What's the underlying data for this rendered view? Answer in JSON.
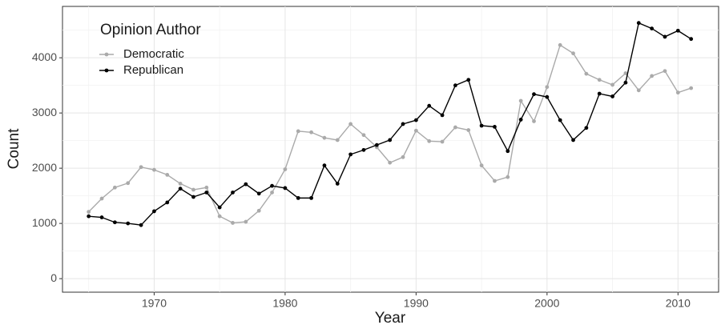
{
  "chart_data": {
    "type": "line",
    "x_label": "Year",
    "y_label": "Count",
    "legend_title": "Opinion Author",
    "legend": "top-left",
    "grid": true,
    "x": [
      1965,
      1966,
      1967,
      1968,
      1969,
      1970,
      1971,
      1972,
      1973,
      1974,
      1975,
      1976,
      1977,
      1978,
      1979,
      1980,
      1981,
      1982,
      1983,
      1984,
      1985,
      1986,
      1987,
      1988,
      1989,
      1990,
      1991,
      1992,
      1993,
      1994,
      1995,
      1996,
      1997,
      1998,
      1999,
      2000,
      2001,
      2002,
      2003,
      2004,
      2005,
      2006,
      2007,
      2008,
      2009,
      2010,
      2011
    ],
    "series": [
      {
        "name": "Democratic",
        "color": "#aaaaaa",
        "values": [
          1210,
          1450,
          1650,
          1730,
          2020,
          1970,
          1880,
          1720,
          1610,
          1650,
          1130,
          1010,
          1030,
          1230,
          1560,
          1980,
          2670,
          2650,
          2550,
          2510,
          2800,
          2600,
          2380,
          2100,
          2200,
          2680,
          2490,
          2480,
          2740,
          2690,
          2050,
          1770,
          1840,
          3220,
          2850,
          3470,
          4230,
          4080,
          3710,
          3600,
          3510,
          3720,
          3410,
          3670,
          3760,
          3370,
          3450
        ]
      },
      {
        "name": "Republican",
        "color": "#000000",
        "values": [
          1130,
          1110,
          1020,
          1000,
          970,
          1220,
          1380,
          1630,
          1480,
          1560,
          1290,
          1560,
          1710,
          1540,
          1680,
          1640,
          1460,
          1460,
          2050,
          1720,
          2250,
          2330,
          2420,
          2510,
          2800,
          2870,
          3130,
          2960,
          3500,
          3600,
          2770,
          2750,
          2310,
          2880,
          3340,
          3290,
          2870,
          2510,
          2730,
          3350,
          3300,
          3550,
          4630,
          4530,
          4380,
          4490,
          4340
        ]
      }
    ],
    "xlim": [
      1963,
      2013.1
    ],
    "xticks": [
      1970,
      1980,
      1990,
      2000,
      2010
    ],
    "ylim": [
      -245,
      4930
    ],
    "yticks": [
      0,
      1000,
      2000,
      3000,
      4000
    ]
  }
}
